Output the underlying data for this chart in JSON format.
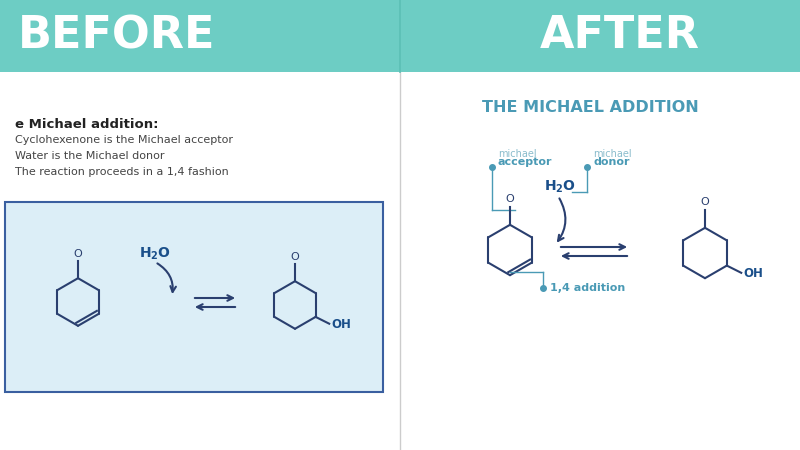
{
  "bg_color": "#ffffff",
  "header_color": "#6dcdc4",
  "header_text_color": "#ffffff",
  "before_title": "BEFORE",
  "after_title": "AFTER",
  "divider_color": "#5bbfb5",
  "before_subtitle": "e Michael addition:",
  "before_bullet1": "Cyclohexenone is the Michael acceptor",
  "before_bullet2": "Water is the Michael donor",
  "before_bullet3": "The reaction proceeds in a 1,4 fashion",
  "after_reaction_title": "THE MICHAEL ADDITION",
  "reaction_box_bg": "#dceef7",
  "reaction_box_border": "#3a5fa0",
  "label_color": "#4a9ab5",
  "label_dot_color": "#4a9ab5",
  "michael_gray": "#8abccc",
  "h2o_color": "#1a4f8a",
  "oh_color": "#1a4f8a",
  "molecule_color": "#2a3f6f",
  "teal_color": "#6dcdc4",
  "text_dark": "#222222",
  "text_mid": "#444444",
  "divider_line": "#cccccc"
}
